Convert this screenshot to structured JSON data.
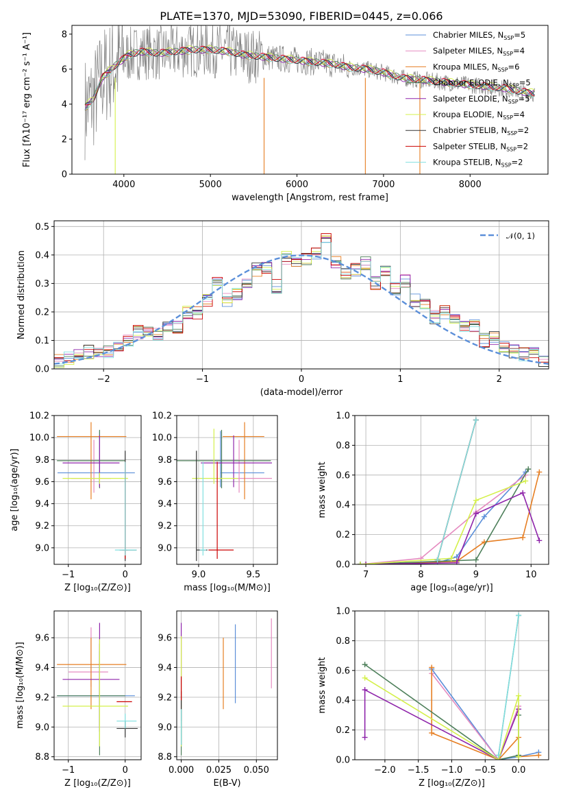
{
  "figure": {
    "title": "PLATE=1370, MJD=53090, FIBERID=0445, z=0.066"
  },
  "chart_data": [
    {
      "id": "spectrum",
      "type": "line",
      "xlabel": "wavelength [Angstrom, rest frame]",
      "ylabel": "Flux [fλ10⁻¹⁷ erg cm⁻² s⁻¹ A⁻¹]",
      "xlim": [
        3400,
        8900
      ],
      "ylim": [
        0,
        8.5
      ],
      "xticks": [
        4000,
        5000,
        6000,
        7000,
        8000
      ],
      "yticks": [
        0,
        2,
        4,
        6,
        8
      ],
      "legend_position": "top-right",
      "data_color": "#808080",
      "legend": [
        {
          "label": "Chabrier MILES, N",
          "sub": "SSP",
          "tail": "=5",
          "color": "#5b8fd9"
        },
        {
          "label": "Salpeter MILES, N",
          "sub": "SSP",
          "tail": "=4",
          "color": "#e58bc0"
        },
        {
          "label": "Kroupa MILES, N",
          "sub": "SSP",
          "tail": "=6",
          "color": "#e67e22"
        },
        {
          "label": "Chabrier ELODIE, N",
          "sub": "SSP",
          "tail": "=5",
          "color": "#4d7f5a"
        },
        {
          "label": "Salpeter ELODIE, N",
          "sub": "SSP",
          "tail": "=5",
          "color": "#8e24aa"
        },
        {
          "label": "Kroupa ELODIE, N",
          "sub": "SSP",
          "tail": "=4",
          "color": "#d4f04a"
        },
        {
          "label": "Chabrier STELIB, N",
          "sub": "SSP",
          "tail": "=2",
          "color": "#333333"
        },
        {
          "label": "Salpeter STELIB, N",
          "sub": "SSP",
          "tail": "=2",
          "color": "#cc0000"
        },
        {
          "label": "Kroupa STELIB, N",
          "sub": "SSP",
          "tail": "=2",
          "color": "#80e0e0"
        }
      ],
      "model_curve": {
        "x": [
          3550,
          3650,
          3750,
          3900,
          4050,
          4200,
          4400,
          4600,
          4800,
          5000,
          5200,
          5400,
          5600,
          5800,
          6000,
          6200,
          6400,
          6600,
          6800,
          7000,
          7200,
          7400,
          7600,
          7800,
          8000,
          8200,
          8400,
          8600,
          8750
        ],
        "y": [
          3.8,
          4.3,
          5.5,
          6.2,
          6.8,
          7.0,
          6.9,
          7.0,
          7.1,
          7.1,
          7.0,
          6.8,
          6.7,
          6.6,
          6.5,
          6.4,
          6.3,
          6.1,
          6.0,
          5.8,
          5.5,
          5.4,
          5.3,
          5.2,
          5.1,
          5.0,
          4.9,
          4.7,
          4.6
        ]
      }
    },
    {
      "id": "residuals",
      "type": "line",
      "xlabel": "(data-model)/error",
      "ylabel": "Normed distribution",
      "xlim": [
        -2.5,
        2.5
      ],
      "ylim": [
        0,
        0.52
      ],
      "xticks": [
        -2,
        -1,
        0,
        1,
        2
      ],
      "yticks": [
        0.0,
        0.1,
        0.2,
        0.3,
        0.4,
        0.5
      ],
      "legend": {
        "label": "𝒩(0, 1)",
        "position": "top-right",
        "color": "#5b8fd9"
      },
      "hist_bins": [
        -2.5,
        -2.4,
        -2.3,
        -2.2,
        -2.1,
        -2.0,
        -1.9,
        -1.8,
        -1.7,
        -1.6,
        -1.5,
        -1.4,
        -1.3,
        -1.2,
        -1.1,
        -1.0,
        -0.9,
        -0.8,
        -0.7,
        -0.6,
        -0.5,
        -0.4,
        -0.3,
        -0.2,
        -0.1,
        0.0,
        0.1,
        0.2,
        0.3,
        0.4,
        0.5,
        0.6,
        0.7,
        0.8,
        0.9,
        1.0,
        1.1,
        1.2,
        1.3,
        1.4,
        1.5,
        1.6,
        1.7,
        1.8,
        1.9,
        2.0,
        2.1,
        2.2,
        2.3,
        2.4,
        2.5
      ],
      "hist_base": [
        0.03,
        0.04,
        0.05,
        0.06,
        0.05,
        0.06,
        0.07,
        0.1,
        0.13,
        0.13,
        0.12,
        0.15,
        0.15,
        0.2,
        0.2,
        0.24,
        0.3,
        0.24,
        0.26,
        0.3,
        0.35,
        0.36,
        0.29,
        0.39,
        0.37,
        0.39,
        0.41,
        0.46,
        0.37,
        0.34,
        0.35,
        0.37,
        0.3,
        0.34,
        0.28,
        0.31,
        0.24,
        0.22,
        0.18,
        0.2,
        0.18,
        0.15,
        0.15,
        0.1,
        0.11,
        0.08,
        0.06,
        0.05,
        0.05,
        0.03
      ]
    },
    {
      "id": "age-vs-Z",
      "type": "scatter",
      "xlabel": "Z [log₁₀(Z/Z⊙)]",
      "ylabel": "age  [log₁₀(age/yr)]",
      "xlim": [
        -1.25,
        0.28
      ],
      "ylim": [
        8.85,
        10.2
      ],
      "xticks": [
        -1,
        0
      ],
      "yticks": [
        9.0,
        9.2,
        9.4,
        9.6,
        9.8,
        10.0,
        10.2
      ],
      "points": [
        {
          "x": -0.45,
          "y": 9.68,
          "xerr": [
            0.74,
            0.62
          ],
          "yerr": [
            0.13,
            0.38
          ],
          "color": "#5b8fd9"
        },
        {
          "x": -0.55,
          "y": 9.63,
          "xerr": [
            0.4,
            0.3
          ],
          "yerr": [
            0.13,
            0.35
          ],
          "color": "#e58bc0"
        },
        {
          "x": -0.6,
          "y": 10.01,
          "xerr": [
            0.6,
            0.62
          ],
          "yerr": [
            0.57,
            0.13
          ],
          "color": "#e67e22"
        },
        {
          "x": -0.45,
          "y": 9.79,
          "xerr": [
            0.75,
            0.45
          ],
          "yerr": [
            0.25,
            0.28
          ],
          "color": "#4d7f5a"
        },
        {
          "x": -0.45,
          "y": 9.77,
          "xerr": [
            0.65,
            0.35
          ],
          "yerr": [
            0.22,
            0.25
          ],
          "color": "#8e24aa"
        },
        {
          "x": -0.45,
          "y": 9.63,
          "xerr": [
            0.65,
            0.5
          ],
          "yerr": [
            0.05,
            0.05
          ],
          "color": "#d4f04a"
        },
        {
          "x": 0.0,
          "y": 8.98,
          "xerr": [
            0.1,
            0.2
          ],
          "yerr": [
            0.1,
            0.9
          ],
          "color": "#333333"
        },
        {
          "x": 0.0,
          "y": 8.98,
          "xerr": [
            0.05,
            0.05
          ],
          "yerr": [
            0.08,
            0.8
          ],
          "color": "#cc0000"
        },
        {
          "x": 0.0,
          "y": 8.98,
          "xerr": [
            0.18,
            0.2
          ],
          "yerr": [
            0.05,
            0.8
          ],
          "color": "#80e0e0"
        }
      ]
    },
    {
      "id": "age-vs-mass",
      "type": "scatter",
      "xlabel": "mass [log₁₀(M/M⊙)]",
      "ylabel": "",
      "xlim": [
        8.8,
        9.72
      ],
      "ylim": [
        8.85,
        10.2
      ],
      "xticks": [
        9.0,
        9.5
      ],
      "yticks": [
        9.0,
        9.2,
        9.4,
        9.6,
        9.8,
        10.0,
        10.2
      ],
      "points": [
        {
          "x": 9.2,
          "y": 9.68,
          "xerr": [
            0.0,
            0.4
          ],
          "yerr": [
            0.13,
            0.38
          ],
          "color": "#5b8fd9"
        },
        {
          "x": 9.37,
          "y": 9.63,
          "xerr": [
            0.05,
            0.3
          ],
          "yerr": [
            0.13,
            0.35
          ],
          "color": "#e58bc0"
        },
        {
          "x": 9.42,
          "y": 10.01,
          "xerr": [
            0.2,
            0.18
          ],
          "yerr": [
            0.57,
            0.13
          ],
          "color": "#e67e22"
        },
        {
          "x": 9.21,
          "y": 9.79,
          "xerr": [
            0.45,
            0.45
          ],
          "yerr": [
            0.25,
            0.28
          ],
          "color": "#4d7f5a"
        },
        {
          "x": 9.32,
          "y": 9.77,
          "xerr": [
            0.3,
            0.35
          ],
          "yerr": [
            0.22,
            0.25
          ],
          "color": "#8e24aa"
        },
        {
          "x": 9.14,
          "y": 9.63,
          "xerr": [
            0.2,
            0.22
          ],
          "yerr": [
            0.05,
            0.45
          ],
          "color": "#d4f04a"
        },
        {
          "x": 8.98,
          "y": 8.98,
          "xerr": [
            0.0,
            0.1
          ],
          "yerr": [
            0.1,
            0.9
          ],
          "color": "#333333"
        },
        {
          "x": 9.17,
          "y": 8.98,
          "xerr": [
            0.08,
            0.15
          ],
          "yerr": [
            0.08,
            0.8
          ],
          "color": "#cc0000"
        },
        {
          "x": 9.04,
          "y": 8.98,
          "xerr": [
            0.03,
            0.03
          ],
          "yerr": [
            0.05,
            0.8
          ],
          "color": "#80e0e0"
        }
      ]
    },
    {
      "id": "mass-weight-vs-age",
      "type": "line",
      "xlabel": "age  [log₁₀(age/yr)]",
      "ylabel": "mass weight",
      "xlim": [
        6.8,
        10.32
      ],
      "ylim": [
        0,
        1.0
      ],
      "xticks": [
        7,
        8,
        9,
        10
      ],
      "yticks": [
        0.0,
        0.2,
        0.4,
        0.6,
        0.8,
        1.0
      ],
      "series": [
        {
          "color": "#5b8fd9",
          "x": [
            6.9,
            8.3,
            8.65,
            9.15,
            9.9
          ],
          "y": [
            0.0,
            0.01,
            0.05,
            0.32,
            0.62
          ]
        },
        {
          "color": "#e58bc0",
          "x": [
            6.9,
            8.0,
            9.0,
            9.9
          ],
          "y": [
            0.0,
            0.04,
            0.35,
            0.6
          ]
        },
        {
          "color": "#e67e22",
          "x": [
            7.0,
            8.65,
            9.15,
            9.85,
            10.15
          ],
          "y": [
            0.0,
            0.02,
            0.15,
            0.18,
            0.62
          ]
        },
        {
          "color": "#4d7f5a",
          "x": [
            6.9,
            9.0,
            9.95
          ],
          "y": [
            0.0,
            0.03,
            0.64
          ]
        },
        {
          "color": "#8e24aa",
          "x": [
            7.0,
            8.65,
            9.0,
            9.85,
            10.15
          ],
          "y": [
            0.0,
            0.01,
            0.34,
            0.48,
            0.16
          ]
        },
        {
          "color": "#d4f04a",
          "x": [
            6.9,
            8.55,
            9.0,
            9.9
          ],
          "y": [
            0.0,
            0.04,
            0.43,
            0.56
          ]
        },
        {
          "color": "#888888",
          "x": [
            8.3,
            9.0
          ],
          "y": [
            0.03,
            0.97
          ]
        },
        {
          "color": "#cc0000",
          "x": [
            8.3,
            9.0
          ],
          "y": [
            0.03,
            0.97
          ]
        },
        {
          "color": "#80e0e0",
          "x": [
            8.3,
            9.0
          ],
          "y": [
            0.03,
            0.97
          ]
        }
      ]
    },
    {
      "id": "mass-vs-Z",
      "type": "scatter",
      "xlabel": "Z [log₁₀(Z/Z⊙)]",
      "ylabel": "mass [log₁₀(M/M⊙)]",
      "xlim": [
        -1.25,
        0.28
      ],
      "ylim": [
        8.78,
        9.78
      ],
      "xticks": [
        -1,
        0
      ],
      "yticks": [
        8.8,
        9.0,
        9.2,
        9.4,
        9.6
      ],
      "points": [
        {
          "x": -0.45,
          "y": 9.21,
          "xerr": [
            0.74,
            0.62
          ],
          "yerr": [
            0.2,
            0.3
          ],
          "color": "#5b8fd9"
        },
        {
          "x": -0.6,
          "y": 9.37,
          "xerr": [
            0.4,
            0.3
          ],
          "yerr": [
            0.1,
            0.3
          ],
          "color": "#e58bc0"
        },
        {
          "x": -0.6,
          "y": 9.42,
          "xerr": [
            0.6,
            0.62
          ],
          "yerr": [
            0.3,
            0.18
          ],
          "color": "#e67e22"
        },
        {
          "x": -0.45,
          "y": 9.21,
          "xerr": [
            0.75,
            0.45
          ],
          "yerr": [
            0.4,
            0.35
          ],
          "color": "#4d7f5a"
        },
        {
          "x": -0.45,
          "y": 9.32,
          "xerr": [
            0.65,
            0.35
          ],
          "yerr": [
            0.35,
            0.38
          ],
          "color": "#8e24aa"
        },
        {
          "x": -0.45,
          "y": 9.14,
          "xerr": [
            0.65,
            0.5
          ],
          "yerr": [
            0.27,
            0.45
          ],
          "color": "#d4f04a"
        },
        {
          "x": 0.0,
          "y": 8.99,
          "xerr": [
            0.15,
            0.22
          ],
          "yerr": [
            0.06,
            0.05
          ],
          "color": "#333333"
        },
        {
          "x": 0.0,
          "y": 9.17,
          "xerr": [
            0.15,
            0.12
          ],
          "yerr": [
            0.0,
            0.0
          ],
          "color": "#cc0000"
        },
        {
          "x": 0.0,
          "y": 9.04,
          "xerr": [
            0.15,
            0.2
          ],
          "yerr": [
            0.05,
            0.05
          ],
          "color": "#80e0e0"
        }
      ]
    },
    {
      "id": "mass-vs-EBV",
      "type": "scatter",
      "xlabel": "E(B-V)",
      "ylabel": "",
      "xlim": [
        -0.003,
        0.064
      ],
      "ylim": [
        8.78,
        9.78
      ],
      "xticks": [
        0.0,
        0.025,
        0.05
      ],
      "yticks": [
        8.8,
        9.0,
        9.2,
        9.4,
        9.6
      ],
      "points": [
        {
          "x": 0.036,
          "y": 9.43,
          "xerr": [
            0,
            0
          ],
          "yerr": [
            0.27,
            0.26
          ],
          "color": "#5b8fd9"
        },
        {
          "x": 0.06,
          "y": 9.49,
          "xerr": [
            0,
            0
          ],
          "yerr": [
            0.23,
            0.24
          ],
          "color": "#e58bc0"
        },
        {
          "x": 0.028,
          "y": 9.36,
          "xerr": [
            0,
            0
          ],
          "yerr": [
            0.24,
            0.24
          ],
          "color": "#e67e22"
        },
        {
          "x": 0.0,
          "y": 8.95,
          "xerr": [
            0,
            0
          ],
          "yerr": [
            0.14,
            0.23
          ],
          "color": "#4d7f5a"
        },
        {
          "x": 0.0,
          "y": 9.37,
          "xerr": [
            0,
            0
          ],
          "yerr": [
            0.33,
            0.33
          ],
          "color": "#8e24aa"
        },
        {
          "x": 0.0,
          "y": 9.24,
          "xerr": [
            0,
            0
          ],
          "yerr": [
            0.37,
            0.37
          ],
          "color": "#d4f04a"
        },
        {
          "x": 0.0,
          "y": 9.06,
          "xerr": [
            0,
            0
          ],
          "yerr": [
            0.18,
            0.18
          ],
          "color": "#333333"
        },
        {
          "x": 0.0,
          "y": 9.26,
          "xerr": [
            0,
            0
          ],
          "yerr": [
            0.08,
            0.08
          ],
          "color": "#cc0000"
        },
        {
          "x": 0.0,
          "y": 9.0,
          "xerr": [
            0,
            0
          ],
          "yerr": [
            0.12,
            0.12
          ],
          "color": "#80e0e0"
        }
      ]
    },
    {
      "id": "mass-weight-vs-Z",
      "type": "line",
      "xlabel": "Z [log₁₀(Z/Z⊙)]",
      "ylabel": "mass weight",
      "xlim": [
        -2.45,
        0.45
      ],
      "ylim": [
        0,
        1.0
      ],
      "xticks": [
        -2.0,
        -1.5,
        -1.0,
        -0.5,
        0.0
      ],
      "yticks": [
        0.0,
        0.2,
        0.4,
        0.6,
        0.8,
        1.0
      ],
      "series": [
        {
          "color": "#5b8fd9",
          "x": [
            -1.3,
            -0.3,
            0.0,
            0.3
          ],
          "y": [
            0.61,
            0.0,
            0.02,
            0.05
          ]
        },
        {
          "color": "#e58bc0",
          "x": [
            -1.3,
            -0.3,
            0.0
          ],
          "y": [
            0.58,
            0.0,
            0.36
          ]
        },
        {
          "color": "#e67e22",
          "x": [
            -1.3,
            -1.3,
            -0.3,
            0.0,
            0.0,
            0.3
          ],
          "y": [
            0.62,
            0.18,
            0.0,
            0.15,
            0.02,
            0.03
          ]
        },
        {
          "color": "#4d7f5a",
          "x": [
            -2.3,
            -0.3,
            0.0,
            0.0
          ],
          "y": [
            0.64,
            0.0,
            0.03,
            0.3
          ]
        },
        {
          "color": "#8e24aa",
          "x": [
            -2.3,
            -2.3,
            -0.3,
            0.0
          ],
          "y": [
            0.15,
            0.47,
            0.0,
            0.34
          ]
        },
        {
          "color": "#d4f04a",
          "x": [
            -2.3,
            -0.3,
            0.0,
            0.0
          ],
          "y": [
            0.55,
            0.0,
            0.43,
            0.02
          ]
        },
        {
          "color": "#888888",
          "x": [
            -0.3,
            0.0
          ],
          "y": [
            0.03,
            0.97
          ]
        },
        {
          "color": "#80e0e0",
          "x": [
            -0.3,
            0.0
          ],
          "y": [
            0.03,
            0.97
          ]
        }
      ]
    }
  ]
}
